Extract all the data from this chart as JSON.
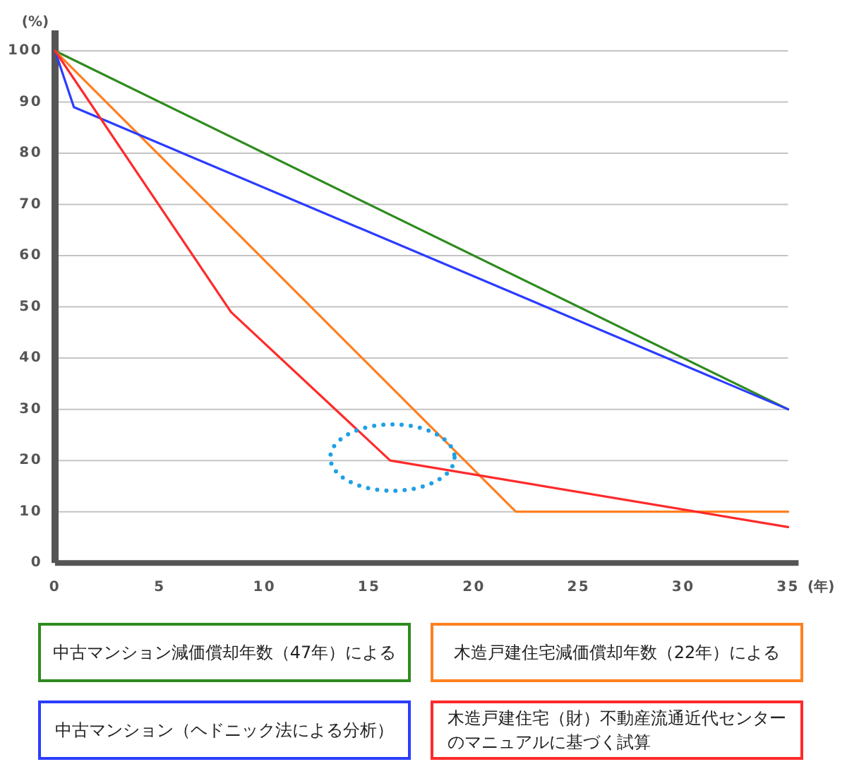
{
  "chart_data": {
    "type": "line",
    "xlabel": "(年)",
    "ylabel": "(%)",
    "xlim": [
      0,
      35.5
    ],
    "ylim": [
      0,
      104
    ],
    "xticks": [
      0,
      5,
      10,
      15,
      20,
      25,
      30,
      35
    ],
    "yticks": [
      0,
      10,
      20,
      30,
      40,
      50,
      60,
      70,
      80,
      90,
      100
    ],
    "grid": "y",
    "legend": "bottom",
    "series": [
      {
        "name": "中古マンション減価償却年数（47年）による",
        "color": "#2e8b1e",
        "x": [
          0,
          35
        ],
        "values": [
          100,
          30
        ]
      },
      {
        "name": "木造戸建住宅減価償却年数（22年）による",
        "color": "#ff8020",
        "x": [
          0,
          22,
          35
        ],
        "values": [
          100,
          10,
          10
        ]
      },
      {
        "name": "中古マンション（ヘドニック法による分析）",
        "color": "#2b3cff",
        "x": [
          0,
          0.9,
          35
        ],
        "values": [
          100,
          89,
          30
        ]
      },
      {
        "name": "木造戸建住宅（財）不動産流通近代センターのマニュアルに基づく試算",
        "color": "#ff2a2a",
        "x": [
          0,
          8.4,
          16,
          35
        ],
        "values": [
          100,
          49,
          20,
          7
        ]
      }
    ]
  }
}
